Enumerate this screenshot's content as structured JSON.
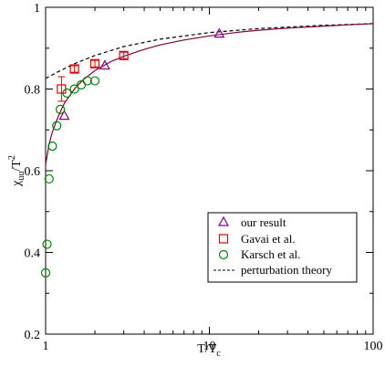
{
  "chart_data": {
    "type": "scatter",
    "title": "",
    "xlabel": {
      "main": "T/T",
      "sub": "c"
    },
    "ylabel": {
      "main": "χ",
      "sub": "uu",
      "tail": "/T",
      "sup": "2"
    },
    "xscale": "log",
    "xlim": [
      1,
      100
    ],
    "ylim": [
      0.2,
      1.0
    ],
    "xticks": [
      1,
      10,
      100
    ],
    "xtick_labels": [
      "1",
      "10",
      "100"
    ],
    "yticks": [
      0.2,
      0.4,
      0.6,
      0.8,
      1.0
    ],
    "ytick_labels": [
      "0.2",
      "0.4",
      "0.6",
      "0.8",
      "1"
    ],
    "grid": false,
    "legend_position": "bottom-right",
    "series": [
      {
        "name": "our result",
        "kind": "points",
        "marker": "triangle",
        "color": "#800080",
        "x": [
          1.3,
          2.3,
          11.5
        ],
        "y": [
          0.735,
          0.858,
          0.936
        ]
      },
      {
        "name": "Gavai et al.",
        "kind": "points",
        "marker": "square",
        "color": "#e00000",
        "x": [
          1.25,
          1.5,
          2.0,
          3.0
        ],
        "y": [
          0.8,
          0.849,
          0.862,
          0.882
        ],
        "err": [
          0.03,
          0.008,
          0.008,
          0.008
        ]
      },
      {
        "name": "Karsch et al.",
        "kind": "points",
        "marker": "circle",
        "color": "#008000",
        "x": [
          1.0,
          1.02,
          1.05,
          1.1,
          1.17,
          1.23,
          1.35,
          1.5,
          1.65,
          1.8,
          2.0
        ],
        "y": [
          0.35,
          0.42,
          0.58,
          0.66,
          0.71,
          0.75,
          0.79,
          0.8,
          0.81,
          0.82,
          0.82
        ]
      },
      {
        "name": "perturbation theory",
        "kind": "dashed-line",
        "color": "#000000",
        "x": [
          1,
          1.2,
          1.5,
          2,
          3,
          5,
          10,
          20,
          50,
          100
        ],
        "y": [
          0.826,
          0.843,
          0.862,
          0.882,
          0.904,
          0.922,
          0.938,
          0.948,
          0.956,
          0.96
        ]
      },
      {
        "name": "",
        "kind": "solid-line",
        "color": "#800040",
        "x": [
          1,
          1.05,
          1.1,
          1.2,
          1.3,
          1.5,
          1.7,
          2,
          2.5,
          3,
          4,
          5,
          7,
          10,
          15,
          20,
          30,
          50,
          70,
          100
        ],
        "y": [
          0.615,
          0.665,
          0.695,
          0.735,
          0.765,
          0.8,
          0.823,
          0.845,
          0.867,
          0.88,
          0.897,
          0.908,
          0.92,
          0.93,
          0.939,
          0.944,
          0.949,
          0.954,
          0.957,
          0.96
        ]
      }
    ]
  }
}
